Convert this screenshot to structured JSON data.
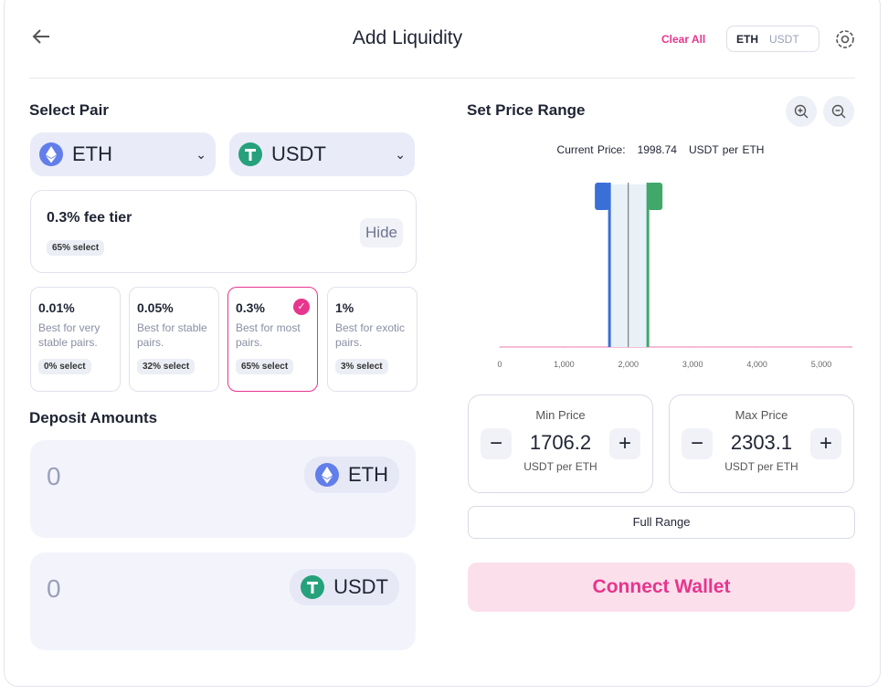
{
  "header": {
    "title": "Add Liquidity",
    "clear_all": "Clear All",
    "toggle": [
      "ETH",
      "USDT"
    ]
  },
  "select_pair": {
    "label": "Select Pair",
    "token_a": "ETH",
    "token_b": "USDT"
  },
  "fee": {
    "selected": "0.3% fee tier",
    "selected_badge": "65% select",
    "hide": "Hide",
    "tiers": [
      {
        "fee": "0.01%",
        "desc": "Best for very stable pairs.",
        "badge": "0% select"
      },
      {
        "fee": "0.05%",
        "desc": "Best for stable pairs.",
        "badge": "32% select"
      },
      {
        "fee": "0.3%",
        "desc": "Best for most pairs.",
        "badge": "65% select"
      },
      {
        "fee": "1%",
        "desc": "Best for exotic pairs.",
        "badge": "3% select"
      }
    ]
  },
  "deposit": {
    "label": "Deposit Amounts",
    "inputs": [
      {
        "amount": "0",
        "token": "ETH"
      },
      {
        "amount": "0",
        "token": "USDT"
      }
    ]
  },
  "price_range": {
    "label": "Set Price Range",
    "current_price_label": "Current Price:",
    "current_price": 1998.74,
    "current_price_unit": "USDT per ETH",
    "xticks": [
      0,
      {
        "value": 1000,
        "label": "1,000"
      },
      {
        "value": 2000,
        "label": "2,000"
      },
      {
        "value": 3000,
        "label": "3,000"
      },
      {
        "value": 4000,
        "label": "4,000"
      },
      {
        "value": 5000,
        "label": "5,000"
      }
    ],
    "min": {
      "label": "Min Price",
      "value": 1706.2,
      "unit": "USDT per ETH"
    },
    "max": {
      "label": "Max Price",
      "value": 2303.1,
      "unit": "USDT per ETH"
    },
    "full_range": "Full Range"
  },
  "connect": "Connect Wallet"
}
